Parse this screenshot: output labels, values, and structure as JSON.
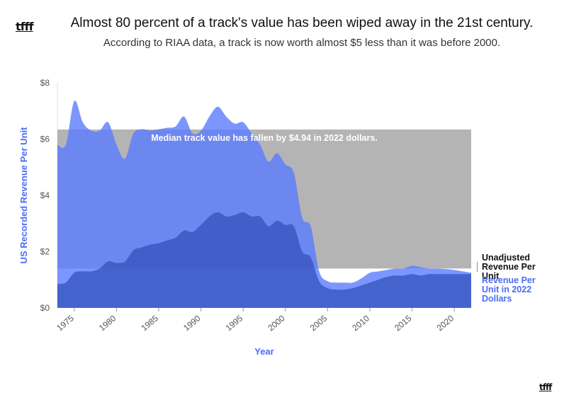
{
  "brand": {
    "logo_text": "tfff"
  },
  "header": {
    "title": "Almost 80 percent of a track's value has been wiped away in the 21st century.",
    "subtitle": "According to RIAA data, a track is now worth almost $5 less than it was before 2000."
  },
  "colors": {
    "adjusted": "#5a7cff",
    "unadjusted": "#2f4db8",
    "median_band": "#b4b4b4",
    "axis_title": "#4a6cf7"
  },
  "chart_data": {
    "type": "area",
    "xlabel": "Year",
    "ylabel": "US Recorded Revenue Per Unit",
    "xlim": [
      1973,
      2022
    ],
    "ylim": [
      0,
      8
    ],
    "x_ticks": [
      1975,
      1980,
      1985,
      1990,
      1995,
      2000,
      2005,
      2010,
      2015,
      2020
    ],
    "y_ticks": [
      0,
      2,
      4,
      6,
      8
    ],
    "y_tick_labels": [
      "$0",
      "$2",
      "$4",
      "$6",
      "$8"
    ],
    "x": [
      1973,
      1974,
      1975,
      1976,
      1977,
      1978,
      1979,
      1980,
      1981,
      1982,
      1983,
      1984,
      1985,
      1986,
      1987,
      1988,
      1989,
      1990,
      1991,
      1992,
      1993,
      1994,
      1995,
      1996,
      1997,
      1998,
      1999,
      2000,
      2001,
      2002,
      2003,
      2004,
      2005,
      2006,
      2007,
      2008,
      2009,
      2010,
      2011,
      2012,
      2013,
      2014,
      2015,
      2016,
      2017,
      2018,
      2019,
      2020,
      2021,
      2022
    ],
    "series": [
      {
        "name": "Revenue Per Unit in 2022 Dollars",
        "values": [
          5.8,
          5.8,
          7.35,
          6.6,
          6.3,
          6.3,
          6.6,
          5.8,
          5.3,
          6.2,
          6.35,
          6.3,
          6.35,
          6.4,
          6.45,
          6.8,
          6.2,
          6.3,
          6.8,
          7.15,
          6.8,
          6.55,
          6.6,
          6.2,
          5.8,
          5.2,
          5.5,
          5.1,
          4.8,
          3.2,
          2.9,
          1.3,
          0.95,
          0.9,
          0.9,
          0.9,
          1.05,
          1.25,
          1.3,
          1.35,
          1.4,
          1.4,
          1.5,
          1.45,
          1.4,
          1.4,
          1.38,
          1.35,
          1.3,
          1.25
        ]
      },
      {
        "name": "Unadjusted Revenue Per Unit",
        "values": [
          0.85,
          0.9,
          1.25,
          1.3,
          1.3,
          1.4,
          1.65,
          1.6,
          1.65,
          2.05,
          2.15,
          2.25,
          2.3,
          2.4,
          2.5,
          2.75,
          2.7,
          2.95,
          3.25,
          3.4,
          3.25,
          3.3,
          3.4,
          3.25,
          3.25,
          2.9,
          3.1,
          2.95,
          2.9,
          2.0,
          1.8,
          0.95,
          0.7,
          0.65,
          0.65,
          0.7,
          0.8,
          0.9,
          1.0,
          1.1,
          1.15,
          1.15,
          1.2,
          1.15,
          1.2,
          1.2,
          1.2,
          1.2,
          1.2,
          1.2
        ]
      }
    ],
    "median_band": {
      "from": 1.4,
      "to": 6.34
    },
    "annotation": "Median track value has fallen by $4.94 in 2022 dollars.",
    "legend": [
      "Unadjusted Revenue Per Unit",
      "Revenue Per Unit in 2022 Dollars"
    ],
    "legend_placement": "right"
  },
  "legend_labels": {
    "unadjusted": "Unadjusted Revenue Per Unit",
    "adjusted": "Revenue Per Unit in 2022 Dollars"
  }
}
